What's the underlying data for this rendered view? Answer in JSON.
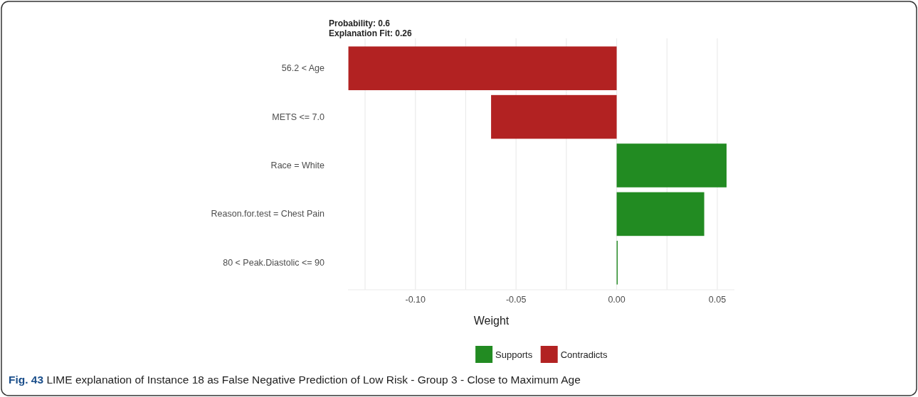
{
  "chart_data": {
    "type": "bar",
    "orientation": "horizontal",
    "title": "Probability: 0.6",
    "subtitle": "Explanation Fit: 0.26",
    "xlabel": "Weight",
    "categories": [
      "56.2 < Age",
      "METS <= 7.0",
      "Race = White",
      "Reason.for.test = Chest Pain",
      "80 < Peak.Diastolic <= 90"
    ],
    "series": [
      {
        "name": "Supports",
        "color": "#228b22",
        "values": [
          null,
          null,
          0.0546,
          0.0435,
          0.0005
        ]
      },
      {
        "name": "Contradicts",
        "color": "#b22222",
        "values": [
          -0.1333,
          -0.0624,
          null,
          null,
          null
        ]
      }
    ],
    "xlim": [
      -0.1335,
      0.0585
    ],
    "xticks": [
      {
        "value": -0.125,
        "label": null
      },
      {
        "value": -0.1,
        "label": "-0.10"
      },
      {
        "value": -0.075,
        "label": null
      },
      {
        "value": -0.05,
        "label": "-0.05"
      },
      {
        "value": -0.025,
        "label": null
      },
      {
        "value": 0,
        "label": "0.00"
      },
      {
        "value": 0.025,
        "label": null
      },
      {
        "value": 0.05,
        "label": "0.05"
      }
    ],
    "grid": "x",
    "legend": "bottom",
    "annotations": [
      "Fig. 43 LIME explanation of Instance 18 as False Negative Prediction of Low Risk - Group 3 - Close to Maximum Age"
    ]
  }
}
